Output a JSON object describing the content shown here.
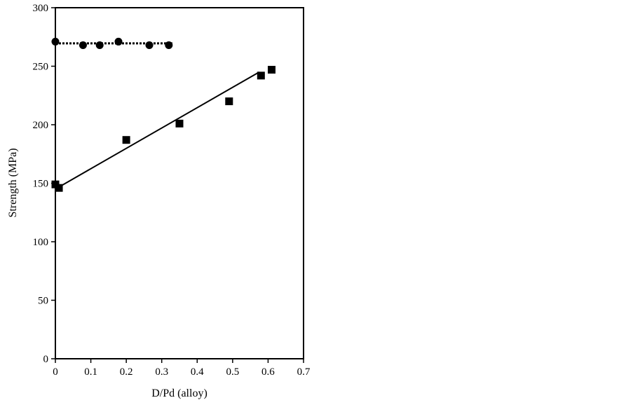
{
  "chart_data": {
    "type": "scatter",
    "xlabel": "D/Pd (alloy)",
    "ylabel": "Strength (MPa)",
    "xlim": [
      0,
      0.7
    ],
    "ylim": [
      0,
      300
    ],
    "x_ticks": [
      "0",
      "0.1",
      "0.2",
      "0.3",
      "0.4",
      "0.5",
      "0.6",
      "0.7"
    ],
    "y_ticks": [
      "0",
      "50",
      "100",
      "150",
      "200",
      "250",
      "300"
    ],
    "grid": false,
    "legend": "none",
    "series": [
      {
        "marker": "circle",
        "color": "#000000",
        "points": [
          {
            "x": 0.0,
            "y": 271
          },
          {
            "x": 0.078,
            "y": 268
          },
          {
            "x": 0.125,
            "y": 268
          },
          {
            "x": 0.178,
            "y": 271
          },
          {
            "x": 0.265,
            "y": 268
          },
          {
            "x": 0.32,
            "y": 268
          }
        ],
        "trendline": {
          "style": "dotted",
          "from": {
            "x": 0.0,
            "y": 269.5
          },
          "to": {
            "x": 0.33,
            "y": 269.5
          }
        }
      },
      {
        "marker": "square",
        "color": "#000000",
        "points": [
          {
            "x": 0.0,
            "y": 149
          },
          {
            "x": 0.01,
            "y": 146
          },
          {
            "x": 0.2,
            "y": 187
          },
          {
            "x": 0.35,
            "y": 201
          },
          {
            "x": 0.49,
            "y": 220
          },
          {
            "x": 0.58,
            "y": 242
          },
          {
            "x": 0.61,
            "y": 247
          }
        ],
        "trendline": {
          "style": "solid",
          "from": {
            "x": 0.0,
            "y": 145
          },
          "to": {
            "x": 0.575,
            "y": 245
          }
        }
      }
    ]
  }
}
